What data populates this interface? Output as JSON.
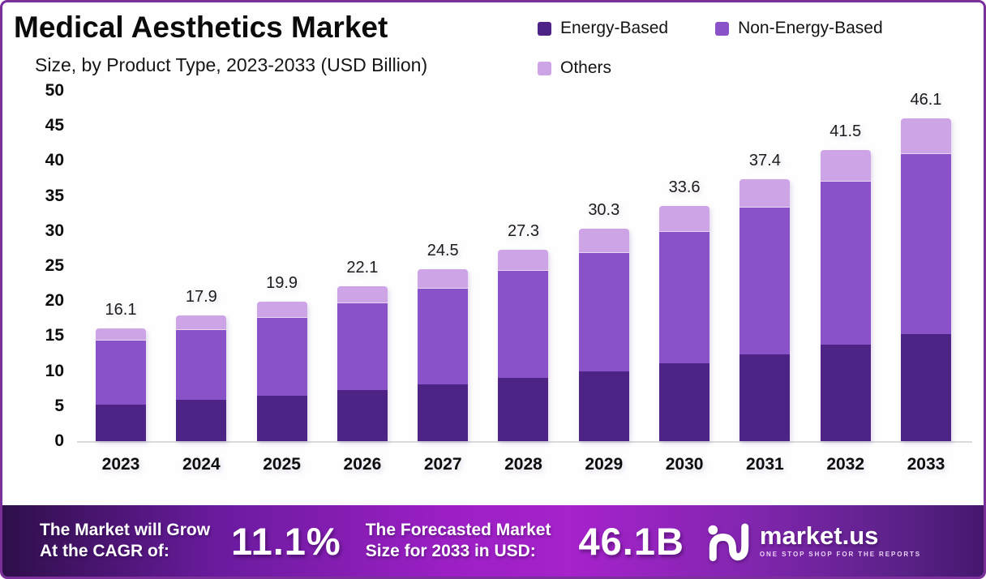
{
  "title": "Medical Aesthetics Market",
  "subtitle": "Size, by Product Type, 2023-2033 (USD Billion)",
  "legend": {
    "items": [
      {
        "label": "Energy-Based",
        "color": "#4e2386"
      },
      {
        "label": "Non-Energy-Based",
        "color": "#8a52c8"
      },
      {
        "label": "Others",
        "color": "#cda4e6"
      }
    ]
  },
  "chart_data": {
    "type": "bar",
    "stacked": true,
    "title": "Medical Aesthetics Market Size, by Product Type, 2023-2033 (USD Billion)",
    "categories": [
      "2023",
      "2024",
      "2025",
      "2026",
      "2027",
      "2028",
      "2029",
      "2030",
      "2031",
      "2032",
      "2033"
    ],
    "series": [
      {
        "name": "Energy-Based",
        "color": "#4e2386",
        "values": [
          5.2,
          5.9,
          6.5,
          7.3,
          8.1,
          9.0,
          10.0,
          11.1,
          12.4,
          13.8,
          15.3
        ]
      },
      {
        "name": "Non-Energy-Based",
        "color": "#8a52c8",
        "values": [
          9.1,
          10.0,
          11.1,
          12.4,
          13.7,
          15.3,
          16.9,
          18.8,
          20.9,
          23.2,
          25.7
        ]
      },
      {
        "name": "Others",
        "color": "#cda4e6",
        "values": [
          1.8,
          2.0,
          2.3,
          2.4,
          2.7,
          3.0,
          3.4,
          3.7,
          4.1,
          4.5,
          5.1
        ]
      }
    ],
    "totals": [
      16.1,
      17.9,
      19.9,
      22.1,
      24.5,
      27.3,
      30.3,
      33.6,
      37.4,
      41.5,
      46.1
    ],
    "xlabel": "",
    "ylabel": "",
    "ylim": [
      0,
      50
    ],
    "yticks": [
      0,
      5,
      10,
      15,
      20,
      25,
      30,
      35,
      40,
      45,
      50
    ],
    "grid": false,
    "legend_position": "top-right"
  },
  "banner": {
    "cagr_label_line1": "The Market will Grow",
    "cagr_label_line2": "At the CAGR of:",
    "cagr_value": "11.1%",
    "forecast_label_line1": "The Forecasted Market",
    "forecast_label_line2": "Size for 2033 in USD:",
    "forecast_value": "46.1B",
    "logo_text": "market.us",
    "logo_tagline": "ONE STOP SHOP FOR THE REPORTS"
  },
  "colors": {
    "frame_border": "#7b2f9b",
    "axis_line": "#dadada",
    "banner_gradient_start": "#2e0f4a",
    "banner_gradient_mid": "#a622cb",
    "banner_gradient_end": "#45186e"
  }
}
